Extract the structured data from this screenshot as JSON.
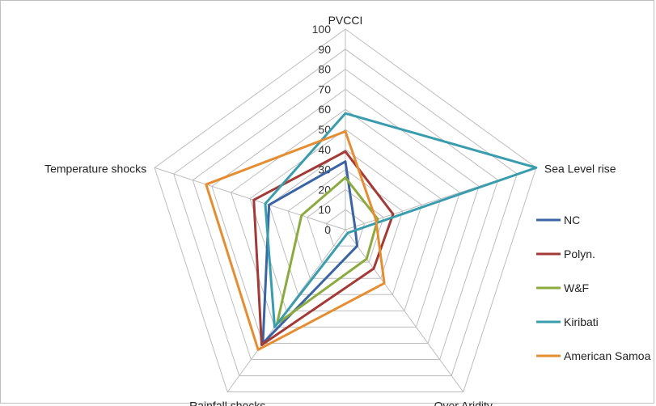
{
  "chart_data": {
    "type": "radar",
    "title": "",
    "axes": [
      "PVCCI",
      "Sea Level rise",
      "Over Aridity",
      "Rainfall shocks",
      "Temperature shocks"
    ],
    "rlim": [
      0,
      100
    ],
    "ticks": [
      0,
      10,
      20,
      30,
      40,
      50,
      60,
      70,
      80,
      90,
      100
    ],
    "tick_labels": [
      "0",
      "10",
      "20",
      "30",
      "40",
      "50",
      "60",
      "70",
      "80",
      "90",
      "100"
    ],
    "grid": true,
    "legend_position": "right",
    "series": [
      {
        "name": "NC",
        "color": "#3b64a4",
        "values": [
          34,
          5,
          10,
          70,
          40
        ]
      },
      {
        "name": "Polyn.",
        "color": "#a33a36",
        "values": [
          39,
          25,
          24,
          71,
          48
        ]
      },
      {
        "name": "W&F",
        "color": "#8bab3f",
        "values": [
          26,
          17,
          18,
          58,
          23
        ]
      },
      {
        "name": "Kiribati",
        "color": "#3a9dae",
        "values": [
          58,
          100,
          2,
          60,
          42
        ]
      },
      {
        "name": "American Samoa",
        "color": "#e58d32",
        "values": [
          49,
          16,
          33,
          74,
          73
        ]
      }
    ]
  }
}
